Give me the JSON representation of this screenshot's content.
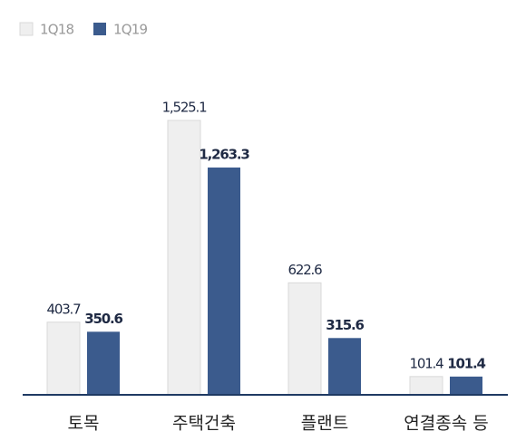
{
  "chart_data": {
    "type": "bar",
    "categories": [
      "토목",
      "주택건축",
      "플랜트",
      "연결종속 등"
    ],
    "series": [
      {
        "name": "1Q18",
        "color": "#efefef",
        "values": [
          403.7,
          1525.1,
          622.6,
          101.4
        ],
        "value_labels": [
          "403.7",
          "1,525.1",
          "622.6",
          "101.4"
        ]
      },
      {
        "name": "1Q19",
        "color": "#3b5b8d",
        "values": [
          350.6,
          1263.3,
          315.6,
          101.4
        ],
        "value_labels": [
          "350.6",
          "1,263.3",
          "315.6",
          "101.4"
        ]
      }
    ]
  }
}
